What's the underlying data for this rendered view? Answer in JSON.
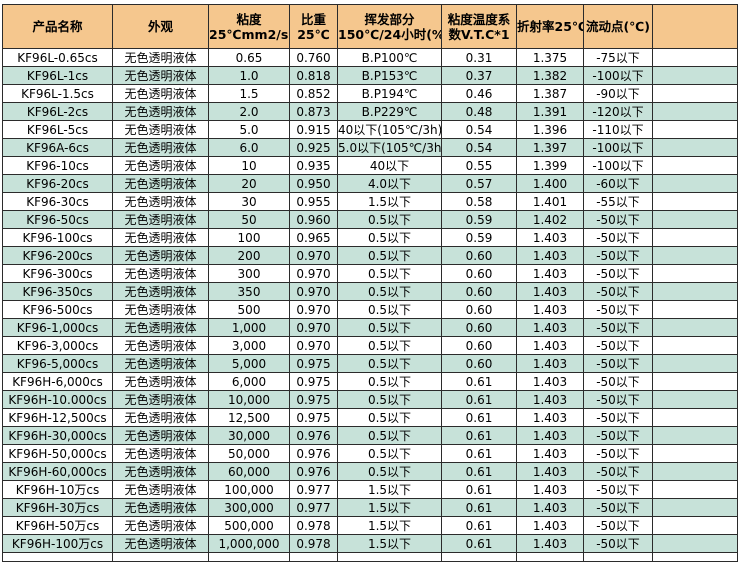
{
  "table": {
    "colors": {
      "header_bg": "#f5c78e",
      "alt_row_bg": "#c7e2d9",
      "row_bg": "#ffffff",
      "grid": "#2b2b2b",
      "text": "#000000"
    },
    "columns": [
      {
        "line1": "产品名称",
        "line2": ""
      },
      {
        "line1": "外观",
        "line2": ""
      },
      {
        "line1": "粘度",
        "line2": "25℃mm2/s※"
      },
      {
        "line1": "比重",
        "line2": "25℃"
      },
      {
        "line1": "挥发部分",
        "line2": "150℃/24小时(%)"
      },
      {
        "line1": "粘度温度系",
        "line2": "数V.T.C*1"
      },
      {
        "line1": "折射率25℃",
        "line2": ""
      },
      {
        "line1": "流动点(℃)",
        "line2": ""
      },
      {
        "line1": "",
        "line2": ""
      }
    ],
    "rows": [
      [
        "KF96L-0.65cs",
        "无色透明液体",
        "0.65",
        "0.760",
        "B.P100℃",
        "0.31",
        "1.375",
        "-75以下"
      ],
      [
        "KF96L-1cs",
        "无色透明液体",
        "1.0",
        "0.818",
        "B.P153℃",
        "0.37",
        "1.382",
        "-100以下"
      ],
      [
        "KF96L-1.5cs",
        "无色透明液体",
        "1.5",
        "0.852",
        "B.P194℃",
        "0.46",
        "1.387",
        "-90以下"
      ],
      [
        "KF96L-2cs",
        "无色透明液体",
        "2.0",
        "0.873",
        "B.P229℃",
        "0.48",
        "1.391",
        "-120以下"
      ],
      [
        "KF96L-5cs",
        "无色透明液体",
        "5.0",
        "0.915",
        "40以下(105℃/3h)",
        "0.54",
        "1.396",
        "-110以下"
      ],
      [
        "KF96A-6cs",
        "无色透明液体",
        "6.0",
        "0.925",
        "5.0以下(105℃/3h)",
        "0.54",
        "1.397",
        "-100以下"
      ],
      [
        "KF96-10cs",
        "无色透明液体",
        "10",
        "0.935",
        "40以下",
        "0.55",
        "1.399",
        "-100以下"
      ],
      [
        "KF96-20cs",
        "无色透明液体",
        "20",
        "0.950",
        "4.0以下",
        "0.57",
        "1.400",
        "-60以下"
      ],
      [
        "KF96-30cs",
        "无色透明液体",
        "30",
        "0.955",
        "1.5以下",
        "0.58",
        "1.401",
        "-55以下"
      ],
      [
        "KF96-50cs",
        "无色透明液体",
        "50",
        "0.960",
        "0.5以下",
        "0.59",
        "1.402",
        "-50以下"
      ],
      [
        "KF96-100cs",
        "无色透明液体",
        "100",
        "0.965",
        "0.5以下",
        "0.59",
        "1.403",
        "-50以下"
      ],
      [
        "KF96-200cs",
        "无色透明液体",
        "200",
        "0.970",
        "0.5以下",
        "0.60",
        "1.403",
        "-50以下"
      ],
      [
        "KF96-300cs",
        "无色透明液体",
        "300",
        "0.970",
        "0.5以下",
        "0.60",
        "1.403",
        "-50以下"
      ],
      [
        "KF96-350cs",
        "无色透明液体",
        "350",
        "0.970",
        "0.5以下",
        "0.60",
        "1.403",
        "-50以下"
      ],
      [
        "KF96-500cs",
        "无色透明液体",
        "500",
        "0.970",
        "0.5以下",
        "0.60",
        "1.403",
        "-50以下"
      ],
      [
        "KF96-1,000cs",
        "无色透明液体",
        "1,000",
        "0.970",
        "0.5以下",
        "0.60",
        "1.403",
        "-50以下"
      ],
      [
        "KF96-3,000cs",
        "无色透明液体",
        "3,000",
        "0.970",
        "0.5以下",
        "0.60",
        "1.403",
        "-50以下"
      ],
      [
        "KF96-5,000cs",
        "无色透明液体",
        "5,000",
        "0.975",
        "0.5以下",
        "0.60",
        "1.403",
        "-50以下"
      ],
      [
        "KF96H-6,000cs",
        "无色透明液体",
        "6,000",
        "0.975",
        "0.5以下",
        "0.61",
        "1.403",
        "-50以下"
      ],
      [
        "KF96H-10.000cs",
        "无色透明液体",
        "10,000",
        "0.975",
        "0.5以下",
        "0.61",
        "1.403",
        "-50以下"
      ],
      [
        "KF96H-12,500cs",
        "无色透明液体",
        "12,500",
        "0.975",
        "0.5以下",
        "0.61",
        "1.403",
        "-50以下"
      ],
      [
        "KF96H-30,000cs",
        "无色透明液体",
        "30,000",
        "0.976",
        "0.5以下",
        "0.61",
        "1.403",
        "-50以下"
      ],
      [
        "KF96H-50,000cs",
        "无色透明液体",
        "50,000",
        "0.976",
        "0.5以下",
        "0.61",
        "1.403",
        "-50以下"
      ],
      [
        "KF96H-60,000cs",
        "无色透明液体",
        "60,000",
        "0.976",
        "0.5以下",
        "0.61",
        "1.403",
        "-50以下"
      ],
      [
        "KF96H-10万cs",
        "无色透明液体",
        "100,000",
        "0.977",
        "1.5以下",
        "0.61",
        "1.403",
        "-50以下"
      ],
      [
        "KF96H-30万cs",
        "无色透明液体",
        "300,000",
        "0.977",
        "1.5以下",
        "0.61",
        "1.403",
        "-50以下"
      ],
      [
        "KF96H-50万cs",
        "无色透明液体",
        "500,000",
        "0.978",
        "1.5以下",
        "0.61",
        "1.403",
        "-50以下"
      ],
      [
        "KF96H-100万cs",
        "无色透明液体",
        "1,000,000",
        "0.978",
        "1.5以下",
        "0.61",
        "1.403",
        "-50以下"
      ]
    ]
  }
}
